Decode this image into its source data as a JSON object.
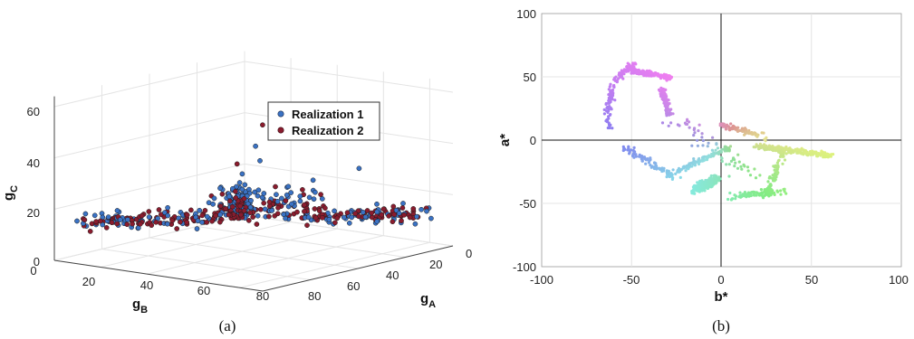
{
  "figures": {
    "left_caption": "(a)",
    "right_caption": "(b)"
  },
  "chart_data": [
    {
      "type": "scatter",
      "projection": "3d",
      "xlabel": "g",
      "xlabel_sub": "B",
      "ylabel": "g",
      "ylabel_sub": "A",
      "zlabel": "g",
      "zlabel_sub": "C",
      "x_ticks": [
        "0",
        "20",
        "40",
        "60",
        "80"
      ],
      "y_ticks": [
        "0",
        "20",
        "40",
        "60",
        "80"
      ],
      "z_ticks": [
        "0",
        "20",
        "40",
        "60"
      ],
      "xlim": [
        0,
        90
      ],
      "ylim": [
        0,
        80
      ],
      "zlim": [
        0,
        60
      ],
      "legend_position": "top-right",
      "grid": true,
      "colors": {
        "Realization 1": "#3a72c4",
        "Realization 2": "#8a1c2e"
      },
      "series": [
        {
          "name": "Realization 1",
          "description": "blue points"
        },
        {
          "name": "Realization 2",
          "description": "dark red points"
        }
      ]
    },
    {
      "type": "scatter",
      "xlabel": "b*",
      "ylabel": "a*",
      "xlim": [
        -100,
        100
      ],
      "ylim": [
        -100,
        100
      ],
      "x_ticks": [
        "-100",
        "-50",
        "0",
        "50",
        "100"
      ],
      "y_ticks": [
        "-100",
        "-50",
        "0",
        "50",
        "100"
      ],
      "grid": true,
      "point_color": "perceptual color at each (a*, b*)",
      "clusters": [
        {
          "b_center": -42,
          "a_center": 53,
          "color": "#b97de0"
        },
        {
          "b_center": -33,
          "a_center": 32,
          "color": "#c792ea"
        },
        {
          "b_center": -55,
          "a_center": 10,
          "color": "#8fa3e0"
        },
        {
          "b_center": -15,
          "a_center": -30,
          "color": "#7fd0e0"
        },
        {
          "b_center": -8,
          "a_center": -42,
          "color": "#6fd6d2"
        },
        {
          "b_center": 25,
          "a_center": -40,
          "color": "#8fdfa0"
        },
        {
          "b_center": 35,
          "a_center": -5,
          "color": "#e2d37a"
        },
        {
          "b_center": 50,
          "a_center": -8,
          "color": "#e8d26a"
        },
        {
          "b_center": 15,
          "a_center": 10,
          "color": "#d4b0b0"
        }
      ]
    }
  ]
}
